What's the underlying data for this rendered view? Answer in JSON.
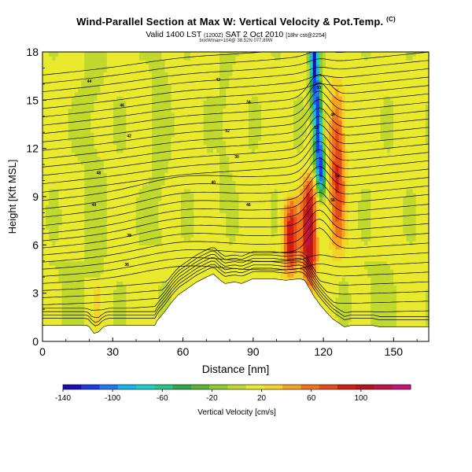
{
  "title": {
    "main": "Wind-Parallel Section at Max W: Vertical Velocity & Pot.Temp.",
    "badge": "(C)",
    "valid_main": "Valid 1400 LST",
    "valid_small": "(1200Z)",
    "valid_date": "SAT 2 Oct 2010",
    "valid_tail": "[18hr cst@2254]",
    "line3": "boxWmax=104@ 38.52N 077.89W"
  },
  "chart_data": {
    "type": "heatmap",
    "xlabel": "Distance [nm]",
    "ylabel": "Height [Kft MSL]",
    "xlim": [
      0,
      165
    ],
    "ylim": [
      0,
      18
    ],
    "xticks": [
      0,
      30,
      60,
      90,
      120,
      150
    ],
    "yticks": [
      0,
      3,
      6,
      9,
      12,
      15,
      18
    ],
    "grid": false,
    "field": "Vertical Velocity",
    "field_units": "cm/s",
    "colorbar": {
      "label": "Vertical Velocity [cm/s]",
      "range": [
        -140,
        140
      ],
      "ticks": [
        -140,
        -100,
        -60,
        -20,
        20,
        60,
        100
      ],
      "colors": [
        "#1a0fb4",
        "#1c3ce6",
        "#1e78f0",
        "#19b4ec",
        "#1ccfc8",
        "#27c58b",
        "#2ea84a",
        "#58b832",
        "#8fca2f",
        "#c1d82c",
        "#e9e92d",
        "#f3d427",
        "#f7a520",
        "#f1741c",
        "#e84a18",
        "#d21d17",
        "#b9131f",
        "#c0144a",
        "#c8147a"
      ]
    },
    "terrain": [
      [
        0,
        1.0
      ],
      [
        19,
        1.0
      ],
      [
        20,
        0.9
      ],
      [
        21,
        0.7
      ],
      [
        22,
        0.5
      ],
      [
        24,
        0.6
      ],
      [
        26,
        0.9
      ],
      [
        28,
        1.0
      ],
      [
        44,
        1.0
      ],
      [
        48,
        1.0
      ],
      [
        49,
        1.3
      ],
      [
        52,
        1.8
      ],
      [
        55,
        2.4
      ],
      [
        58,
        2.9
      ],
      [
        61,
        3.2
      ],
      [
        64,
        3.5
      ],
      [
        66,
        3.7
      ],
      [
        70,
        4.0
      ],
      [
        73,
        4.2
      ],
      [
        76,
        3.8
      ],
      [
        78,
        3.6
      ],
      [
        82,
        3.7
      ],
      [
        85,
        3.6
      ],
      [
        90,
        3.9
      ],
      [
        98,
        3.9
      ],
      [
        104,
        3.8
      ],
      [
        110,
        3.9
      ],
      [
        112,
        3.8
      ],
      [
        114,
        3.3
      ],
      [
        116,
        2.8
      ],
      [
        119,
        2.2
      ],
      [
        122,
        1.7
      ],
      [
        124,
        1.4
      ],
      [
        126,
        1.2
      ],
      [
        129,
        0.9
      ],
      [
        132,
        1.0
      ],
      [
        141,
        1.0
      ],
      [
        144,
        0.9
      ],
      [
        165,
        0.9
      ]
    ],
    "updrafts": [
      {
        "x": 114,
        "z_bottom": 3.0,
        "z_top": 10.5,
        "w_max": 104
      },
      {
        "x": 106,
        "z_bottom": 4.0,
        "z_top": 9.0,
        "w_max": 80
      },
      {
        "x": 126,
        "z_bottom": 5.0,
        "z_top": 16.5,
        "w_max": 70
      }
    ],
    "downdrafts": [
      {
        "x_top": 116,
        "x_bottom": 119,
        "z_bottom": 9.5,
        "z_top": 17.8,
        "w_min": -140
      }
    ],
    "theta_contour_labels": [
      "44",
      "46",
      "42",
      "48",
      "40",
      "38",
      "36",
      "42",
      "34",
      "32",
      "30",
      "40",
      "46",
      "50",
      "48",
      "52",
      "54",
      "56"
    ]
  }
}
